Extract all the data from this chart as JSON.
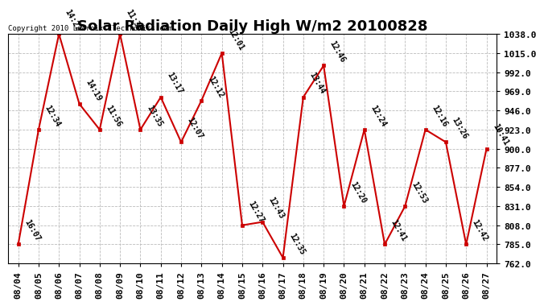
{
  "title": "Solar Radiation Daily High W/m2 20100828",
  "copyright": "Copyright 2010 Lacroix Electronics.com",
  "dates": [
    "08/04",
    "08/05",
    "08/06",
    "08/07",
    "08/08",
    "08/09",
    "08/10",
    "08/11",
    "08/12",
    "08/13",
    "08/14",
    "08/15",
    "08/16",
    "08/17",
    "08/18",
    "08/19",
    "08/20",
    "08/21",
    "08/22",
    "08/23",
    "08/24",
    "08/25",
    "08/26",
    "08/27"
  ],
  "values": [
    785,
    923,
    1038,
    954,
    923,
    1038,
    923,
    962,
    908,
    958,
    1015,
    808,
    812,
    769,
    962,
    1000,
    831,
    923,
    785,
    831,
    923,
    908,
    785,
    900
  ],
  "labels": [
    "16:07",
    "12:34",
    "14:22",
    "14:19",
    "11:56",
    "11:38",
    "13:35",
    "13:17",
    "12:07",
    "12:12",
    "12:01",
    "12:27",
    "12:43",
    "12:35",
    "13:44",
    "12:46",
    "12:20",
    "12:24",
    "12:41",
    "12:53",
    "12:16",
    "13:26",
    "12:42",
    "10:41"
  ],
  "line_color": "#cc0000",
  "marker_color": "#cc0000",
  "background_color": "#ffffff",
  "plot_bg_color": "#ffffff",
  "grid_color": "#bbbbbb",
  "ylim_low": 762,
  "ylim_high": 1038,
  "yticks": [
    762.0,
    785.0,
    808.0,
    831.0,
    854.0,
    877.0,
    900.0,
    923.0,
    946.0,
    969.0,
    992.0,
    1015.0,
    1038.0
  ],
  "title_fontsize": 13,
  "label_fontsize": 7,
  "tick_fontsize": 8,
  "copyright_fontsize": 6.5
}
